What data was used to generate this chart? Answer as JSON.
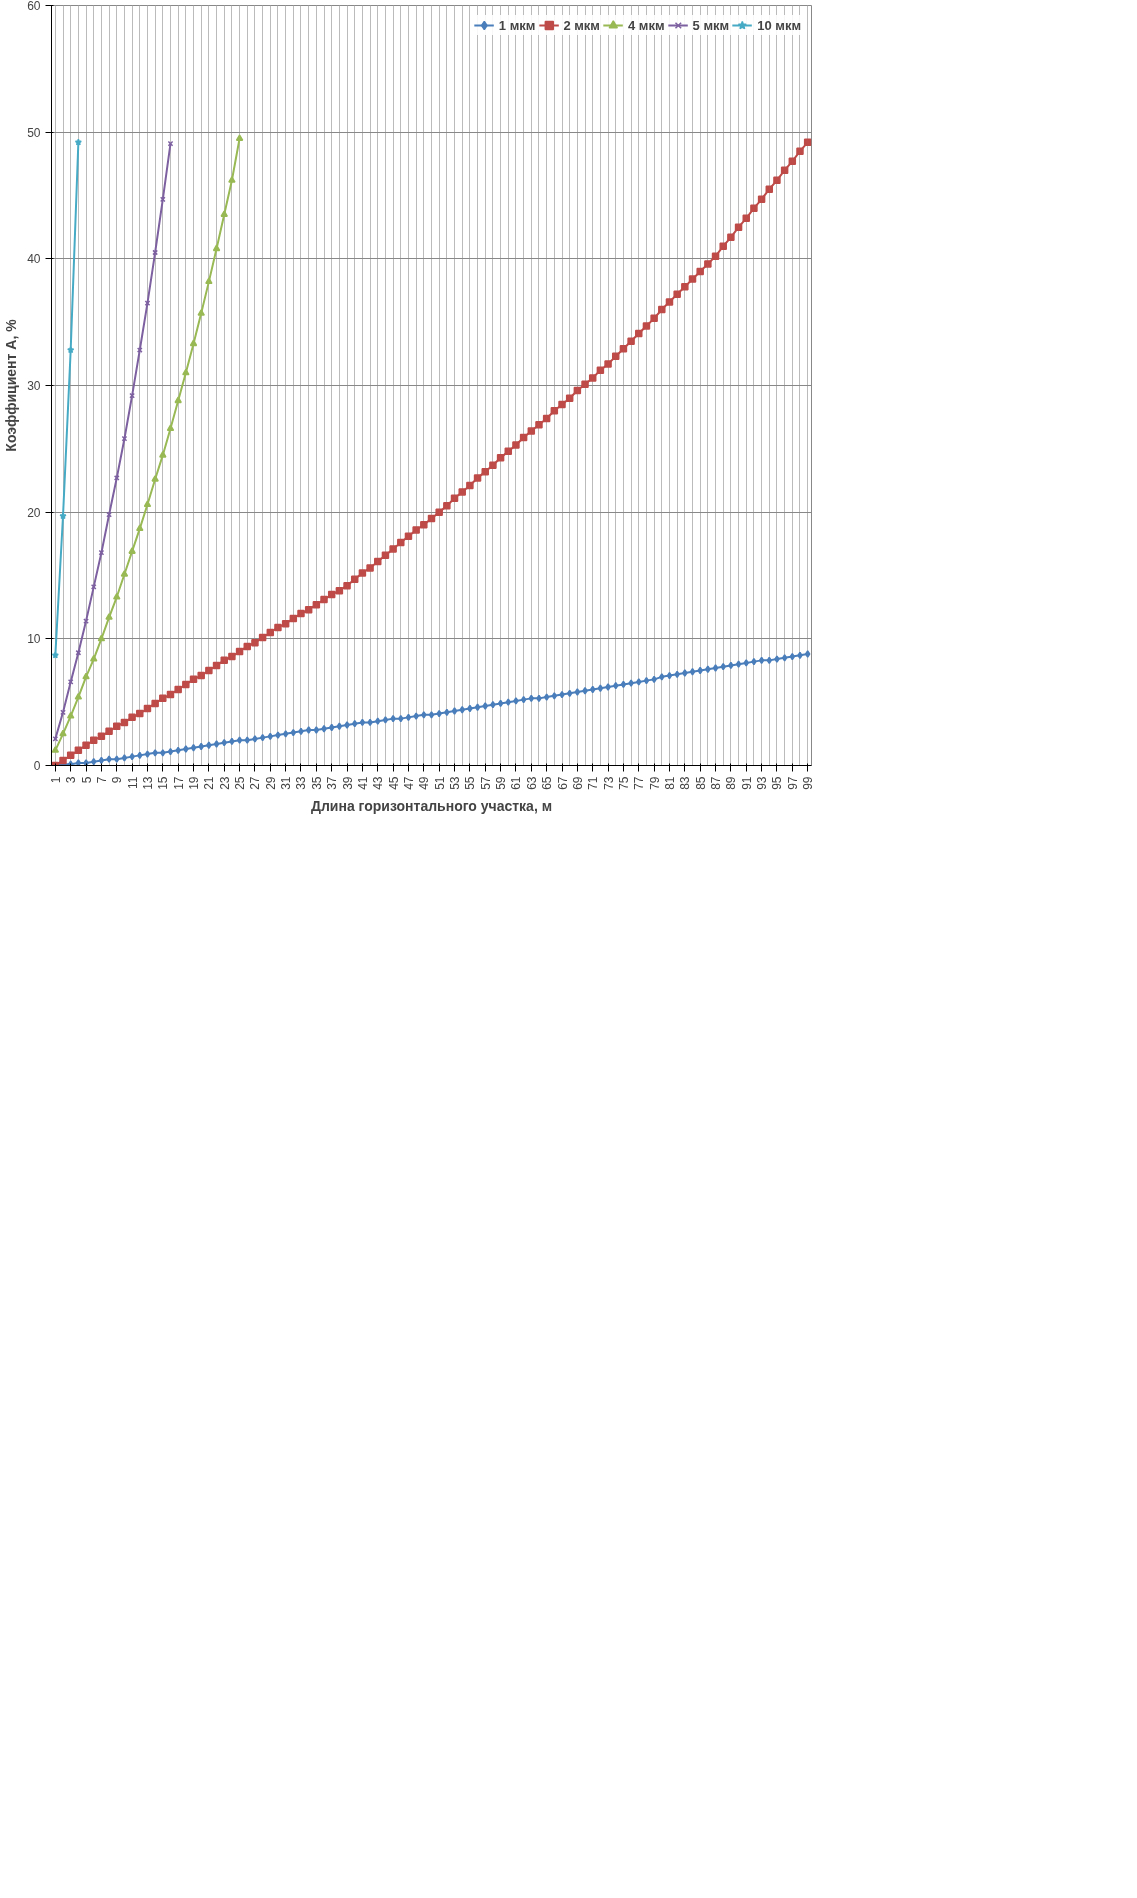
{
  "chart_data": {
    "type": "line",
    "xlabel": "Длина горизонтального участка, м",
    "ylabel": "Коэффициент А, %",
    "categories": [
      "1",
      null,
      "3",
      null,
      "5",
      null,
      "7",
      null,
      "9",
      null,
      "11",
      null,
      "13",
      null,
      "15",
      null,
      "17",
      null,
      "19",
      null,
      "21",
      null,
      "23",
      null,
      "25",
      null,
      "27",
      null,
      "29",
      null,
      "31",
      null,
      "33",
      null,
      "35",
      null,
      "37",
      null,
      "39",
      null,
      "41",
      null,
      "43",
      null,
      "45",
      null,
      "47",
      null,
      "49",
      null,
      "51",
      null,
      "53",
      null,
      "55",
      null,
      "57",
      null,
      "59",
      null,
      "61",
      null,
      "63",
      null,
      "65",
      null,
      "67",
      null,
      "69",
      null,
      "71",
      null,
      "73",
      null,
      "75",
      null,
      "77",
      null,
      "79",
      null,
      "81",
      null,
      "83",
      null,
      "85",
      null,
      "87",
      null,
      "89",
      null,
      "91",
      null,
      "93",
      null,
      "95",
      null,
      "97",
      null,
      "99"
    ],
    "series": [
      {
        "name": "1 мкм",
        "color": "#4a7ebb",
        "marker": "diamond",
        "values": [
          0,
          0.1,
          0.1,
          0.2,
          0.2,
          0.3,
          0.4,
          0.5,
          0.5,
          0.6,
          0.7,
          0.8,
          0.9,
          1.0,
          1.0,
          1.1,
          1.2,
          1.3,
          1.4,
          1.5,
          1.6,
          1.7,
          1.8,
          1.9,
          2.0,
          2.0,
          2.1,
          2.2,
          2.3,
          2.4,
          2.5,
          2.6,
          2.7,
          2.8,
          2.8,
          2.9,
          3.0,
          3.1,
          3.2,
          3.3,
          3.4,
          3.4,
          3.5,
          3.6,
          3.7,
          3.7,
          3.8,
          3.9,
          4.0,
          4.0,
          4.1,
          4.2,
          4.3,
          4.4,
          4.5,
          4.6,
          4.7,
          4.8,
          4.9,
          5.0,
          5.1,
          5.2,
          5.3,
          5.3,
          5.4,
          5.5,
          5.6,
          5.7,
          5.8,
          5.9,
          6.0,
          6.1,
          6.2,
          6.3,
          6.4,
          6.5,
          6.6,
          6.7,
          6.8,
          7.0,
          7.1,
          7.2,
          7.3,
          7.4,
          7.5,
          7.6,
          7.7,
          7.8,
          7.9,
          8.0,
          8.1,
          8.2,
          8.3,
          8.3,
          8.4,
          8.5,
          8.6,
          8.7,
          8.8
        ]
      },
      {
        "name": "2 мкм",
        "color": "#be4b48",
        "marker": "square",
        "values": [
          0,
          0.4,
          0.8,
          1.2,
          1.6,
          2.0,
          2.3,
          2.7,
          3.1,
          3.4,
          3.8,
          4.1,
          4.5,
          4.9,
          5.3,
          5.6,
          6.0,
          6.4,
          6.8,
          7.1,
          7.5,
          7.9,
          8.3,
          8.6,
          9.0,
          9.4,
          9.7,
          10.1,
          10.5,
          10.9,
          11.2,
          11.6,
          12.0,
          12.3,
          12.7,
          13.1,
          13.5,
          13.8,
          14.2,
          14.7,
          15.2,
          15.6,
          16.1,
          16.6,
          17.1,
          17.6,
          18.1,
          18.6,
          19.0,
          19.5,
          20.0,
          20.5,
          21.1,
          21.6,
          22.1,
          22.7,
          23.2,
          23.7,
          24.3,
          24.8,
          25.3,
          25.9,
          26.4,
          26.9,
          27.4,
          28.0,
          28.5,
          29.0,
          29.6,
          30.1,
          30.6,
          31.2,
          31.7,
          32.3,
          32.9,
          33.5,
          34.1,
          34.7,
          35.3,
          36.0,
          36.6,
          37.2,
          37.8,
          38.4,
          39.0,
          39.6,
          40.2,
          41.0,
          41.7,
          42.5,
          43.2,
          44.0,
          44.7,
          45.5,
          46.2,
          47.0,
          47.7,
          48.5,
          49.2
        ]
      },
      {
        "name": "4 мкм",
        "color": "#98b954",
        "marker": "triangle",
        "values": [
          1.2,
          2.5,
          3.9,
          5.4,
          7.0,
          8.4,
          10.0,
          11.7,
          13.3,
          15.1,
          16.9,
          18.7,
          20.6,
          22.6,
          24.5,
          26.6,
          28.8,
          31.0,
          33.3,
          35.7,
          38.2,
          40.8,
          43.5,
          46.2,
          49.5,
          null,
          null,
          null,
          null,
          null,
          null,
          null,
          null,
          null,
          null,
          null,
          null,
          null,
          null,
          null,
          null,
          null,
          null,
          null,
          null,
          null,
          null,
          null,
          null,
          null,
          null,
          null,
          null,
          null,
          null,
          null,
          null,
          null,
          null,
          null,
          null,
          null,
          null,
          null,
          null,
          null,
          null,
          null,
          null,
          null,
          null,
          null,
          null,
          null,
          null,
          null,
          null,
          null,
          null,
          null,
          null,
          null,
          null,
          null,
          null,
          null,
          null,
          null,
          null,
          null,
          null,
          null,
          null,
          null,
          null,
          null,
          null,
          null,
          null
        ]
      },
      {
        "name": "5 мкм",
        "color": "#7d60a0",
        "marker": "cross",
        "values": [
          2.1,
          4.2,
          6.6,
          8.9,
          11.4,
          14.1,
          16.8,
          19.8,
          22.7,
          25.8,
          29.2,
          32.8,
          36.5,
          40.5,
          44.7,
          49.1,
          null,
          null,
          null,
          null,
          null,
          null,
          null,
          null,
          null,
          null,
          null,
          null,
          null,
          null,
          null,
          null,
          null,
          null,
          null,
          null,
          null,
          null,
          null,
          null,
          null,
          null,
          null,
          null,
          null,
          null,
          null,
          null,
          null,
          null,
          null,
          null,
          null,
          null,
          null,
          null,
          null,
          null,
          null,
          null,
          null,
          null,
          null,
          null,
          null,
          null,
          null,
          null,
          null,
          null,
          null,
          null,
          null,
          null,
          null,
          null,
          null,
          null,
          null,
          null,
          null,
          null,
          null,
          null,
          null,
          null,
          null,
          null,
          null,
          null,
          null,
          null,
          null,
          null,
          null,
          null,
          null,
          null,
          null
        ]
      },
      {
        "name": "10 мкм",
        "color": "#46aac5",
        "marker": "star",
        "values": [
          8.7,
          19.7,
          32.8,
          49.2,
          null,
          null,
          null,
          null,
          null,
          null,
          null,
          null,
          null,
          null,
          null,
          null,
          null,
          null,
          null,
          null,
          null,
          null,
          null,
          null,
          null,
          null,
          null,
          null,
          null,
          null,
          null,
          null,
          null,
          null,
          null,
          null,
          null,
          null,
          null,
          null,
          null,
          null,
          null,
          null,
          null,
          null,
          null,
          null,
          null,
          null,
          null,
          null,
          null,
          null,
          null,
          null,
          null,
          null,
          null,
          null,
          null,
          null,
          null,
          null,
          null,
          null,
          null,
          null,
          null,
          null,
          null,
          null,
          null,
          null,
          null,
          null,
          null,
          null,
          null,
          null,
          null,
          null,
          null,
          null,
          null,
          null,
          null,
          null,
          null,
          null,
          null,
          null,
          null,
          null,
          null,
          null,
          null,
          null,
          null
        ]
      }
    ],
    "ylim": [
      0,
      60
    ],
    "yticks": [
      0,
      10,
      20,
      30,
      40,
      50,
      60
    ],
    "grid": true,
    "legend": "top right",
    "line_style": "solid"
  }
}
